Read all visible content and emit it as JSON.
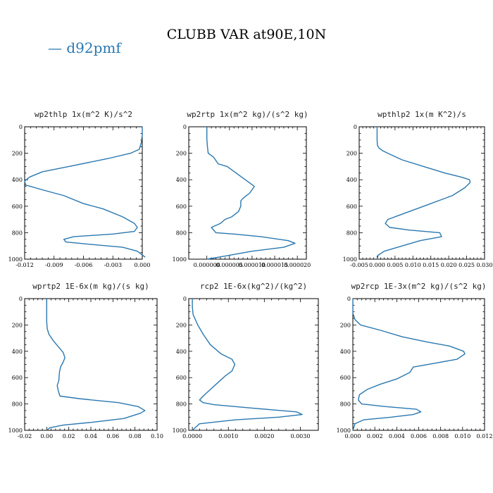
{
  "title": "CLUBB VAR at90E,10N",
  "colors": {
    "series": "#2a78b0"
  },
  "chart_data": [
    {
      "type": "line",
      "title": "wp2thlp  1x(m^2 K)/s^2",
      "series_name": "d92pmf",
      "xlim": [
        -0.012,
        0.0
      ],
      "xticks": [
        -0.012,
        -0.009,
        -0.006,
        -0.003,
        0.0
      ],
      "xtick_labels": [
        "-0.012",
        "-0.009",
        "-0.006",
        "-0.003",
        "0.000"
      ],
      "ylim": [
        0,
        1000
      ],
      "yticks": [
        0,
        200,
        400,
        600,
        800,
        1000
      ],
      "ytick_labels": [
        "0",
        "200",
        "400",
        "600",
        "800",
        "1000"
      ],
      "x": [
        0.0,
        0.0,
        -0.0001,
        -0.0003,
        -0.0012,
        -0.0035,
        -0.0075,
        -0.0102,
        -0.0115,
        -0.012,
        -0.0119,
        -0.01,
        -0.008,
        -0.006,
        -0.004,
        -0.002,
        -0.0008,
        -0.0005,
        -0.0008,
        -0.003,
        -0.007,
        -0.008,
        -0.0078,
        -0.005,
        -0.002,
        -0.0005,
        0.0003
      ],
      "y": [
        0,
        60,
        120,
        170,
        200,
        240,
        300,
        340,
        380,
        410,
        440,
        480,
        520,
        580,
        620,
        680,
        730,
        760,
        790,
        810,
        830,
        850,
        870,
        890,
        910,
        940,
        985
      ]
    },
    {
      "type": "line",
      "title": "wp2rtp  1x(m^2 kg)/(s^2 kg)",
      "series_name": "d92pmf",
      "xlim": [
        -4e-06,
        2.2e-05
      ],
      "xticks": [
        0.0,
        5e-06,
        1e-05,
        1.5e-05,
        2e-05
      ],
      "xtick_labels": [
        "0.000000",
        "0.000005",
        "0.000010",
        "0.000015",
        "0.000020"
      ],
      "ylim": [
        0,
        1000
      ],
      "yticks": [
        0,
        200,
        400,
        600,
        800,
        1000
      ],
      "ytick_labels": [
        "0",
        "200",
        "400",
        "600",
        "800",
        "1000"
      ],
      "x": [
        0.0,
        0.0,
        1e-07,
        3e-07,
        1.5e-06,
        2.5e-06,
        4.5e-06,
        6.5e-06,
        8.5e-06,
        1.05e-05,
        9.5e-06,
        8e-06,
        7.5e-06,
        7.5e-06,
        7e-06,
        5.5e-06,
        4e-06,
        3e-06,
        1e-06,
        2e-06,
        6e-06,
        1.2e-05,
        1.8e-05,
        1.95e-05,
        1.7e-05,
        1e-05,
        3.5e-06,
        0.0
      ],
      "y": [
        0,
        90,
        140,
        200,
        230,
        280,
        300,
        350,
        400,
        450,
        500,
        540,
        560,
        600,
        640,
        680,
        700,
        730,
        760,
        800,
        810,
        830,
        860,
        880,
        910,
        940,
        980,
        1000
      ]
    },
    {
      "type": "line",
      "title": "wpthlp2  1x(m K^2)/s",
      "series_name": "d92pmf",
      "xlim": [
        -0.005,
        0.03
      ],
      "xticks": [
        -0.005,
        0.0,
        0.005,
        0.01,
        0.015,
        0.02,
        0.025,
        0.03
      ],
      "xtick_labels": [
        "-0.005",
        "0.000",
        "0.005",
        "0.010",
        "0.015",
        "0.020",
        "0.025",
        "0.030"
      ],
      "ylim": [
        0,
        1000
      ],
      "yticks": [
        0,
        200,
        400,
        600,
        800,
        1000
      ],
      "ytick_labels": [
        "0",
        "200",
        "400",
        "600",
        "800",
        "1000"
      ],
      "x": [
        0.0,
        0.0,
        0.0001,
        0.0005,
        0.0015,
        0.003,
        0.007,
        0.013,
        0.019,
        0.0235,
        0.0258,
        0.026,
        0.0245,
        0.021,
        0.015,
        0.01,
        0.006,
        0.003,
        0.0023,
        0.0035,
        0.009,
        0.0175,
        0.018,
        0.012,
        0.007,
        0.002,
        0.0003,
        0.0
      ],
      "y": [
        0,
        100,
        140,
        160,
        180,
        200,
        250,
        300,
        350,
        380,
        400,
        420,
        460,
        520,
        580,
        630,
        670,
        700,
        730,
        760,
        780,
        800,
        830,
        860,
        900,
        940,
        970,
        1000
      ]
    },
    {
      "type": "line",
      "title": "wprtp2  1E-6x(m kg)/(s kg)",
      "series_name": "d92pmf",
      "xlim": [
        -0.02,
        0.1
      ],
      "xticks": [
        -0.02,
        0.0,
        0.02,
        0.04,
        0.06,
        0.08,
        0.1
      ],
      "xtick_labels": [
        "-0.02",
        "0.00",
        "0.02",
        "0.04",
        "0.06",
        "0.08",
        "0.10"
      ],
      "ylim": [
        0,
        1000
      ],
      "yticks": [
        0,
        200,
        400,
        600,
        800,
        1000
      ],
      "ytick_labels": [
        "0",
        "200",
        "400",
        "600",
        "800",
        "1000"
      ],
      "x": [
        0.0,
        0.0,
        0.0005,
        0.002,
        0.006,
        0.011,
        0.015,
        0.0165,
        0.015,
        0.0125,
        0.0115,
        0.011,
        0.0095,
        0.0105,
        0.012,
        0.03,
        0.065,
        0.083,
        0.089,
        0.085,
        0.07,
        0.04,
        0.015,
        0.003,
        0.0
      ],
      "y": [
        0,
        180,
        230,
        270,
        320,
        370,
        410,
        450,
        480,
        520,
        560,
        620,
        660,
        700,
        740,
        760,
        790,
        820,
        850,
        870,
        910,
        940,
        960,
        980,
        1000
      ]
    },
    {
      "type": "line",
      "title": "rcp2  1E-6x(kg^2)/(kg^2)",
      "series_name": "d92pmf",
      "xlim": [
        -0.0001,
        0.0035
      ],
      "xticks": [
        0.0,
        0.001,
        0.002,
        0.003
      ],
      "xtick_labels": [
        "0.0000",
        "0.0010",
        "0.0020",
        "0.0030"
      ],
      "ylim": [
        0,
        1000
      ],
      "yticks": [
        0,
        200,
        400,
        600,
        800,
        1000
      ],
      "ytick_labels": [
        "0",
        "200",
        "400",
        "600",
        "800",
        "1000"
      ],
      "x": [
        0.0,
        0.0,
        2e-05,
        0.00015,
        0.0003,
        0.0005,
        0.0008,
        0.0011,
        0.00118,
        0.0011,
        0.0009,
        0.0007,
        0.0005,
        0.0003,
        0.0002,
        0.0003,
        0.0006,
        0.0016,
        0.0029,
        0.00305,
        0.0024,
        0.0012,
        0.0002,
        0.0
      ],
      "y": [
        0,
        60,
        120,
        200,
        270,
        350,
        420,
        460,
        500,
        550,
        590,
        640,
        690,
        740,
        770,
        790,
        805,
        830,
        860,
        880,
        900,
        920,
        950,
        1000
      ]
    },
    {
      "type": "line",
      "title": "wp2rcp  1E-3x(m^2 kg)/(s^2 kg)",
      "series_name": "d92pmf",
      "xlim": [
        0.0,
        0.012
      ],
      "xticks": [
        0.0,
        0.002,
        0.004,
        0.006,
        0.008,
        0.01,
        0.012
      ],
      "xtick_labels": [
        "0.000",
        "0.002",
        "0.004",
        "0.006",
        "0.008",
        "0.010",
        "0.012"
      ],
      "ylim": [
        0,
        1000
      ],
      "yticks": [
        0,
        200,
        400,
        600,
        800,
        1000
      ],
      "ytick_labels": [
        "0",
        "200",
        "400",
        "600",
        "800",
        "1000"
      ],
      "x": [
        0.0,
        0.0,
        0.0002,
        0.0007,
        0.0025,
        0.0045,
        0.0068,
        0.0088,
        0.0101,
        0.0102,
        0.0095,
        0.0075,
        0.0055,
        0.0052,
        0.004,
        0.0025,
        0.0013,
        0.0006,
        0.0005,
        0.0008,
        0.003,
        0.0058,
        0.0062,
        0.0055,
        0.0035,
        0.001,
        0.0002,
        0.0
      ],
      "y": [
        0,
        110,
        160,
        200,
        240,
        290,
        330,
        360,
        400,
        420,
        460,
        490,
        520,
        560,
        610,
        650,
        690,
        730,
        770,
        800,
        820,
        840,
        860,
        880,
        900,
        920,
        950,
        1000
      ]
    }
  ]
}
